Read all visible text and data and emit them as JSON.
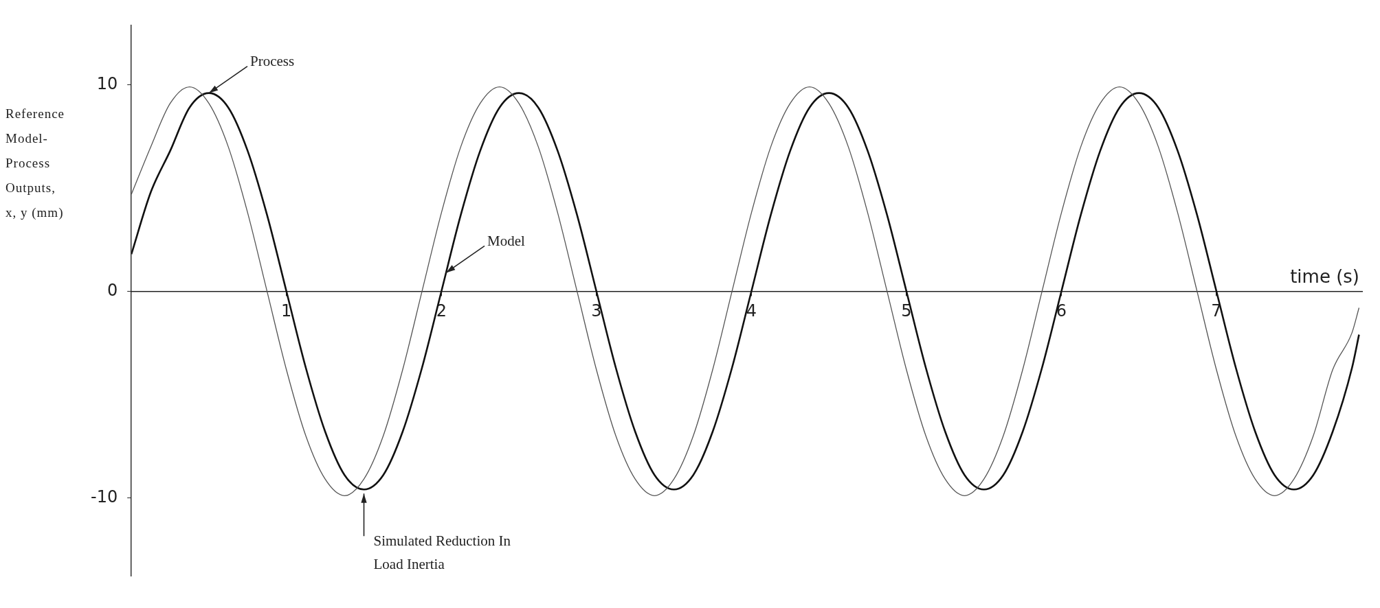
{
  "chart_data": {
    "type": "line",
    "ylabel": "Reference Model-Process Outputs, x, y (mm)",
    "xlabel": "time (s)",
    "x": [
      0,
      0.125,
      0.25,
      0.375,
      0.5,
      0.625,
      0.75,
      0.875,
      1,
      1.125,
      1.25,
      1.375,
      1.5,
      1.625,
      1.75,
      1.875,
      2,
      2.125,
      2.25,
      2.375,
      2.5,
      2.625,
      2.75,
      2.875,
      3,
      3.125,
      3.25,
      3.375,
      3.5,
      3.625,
      3.75,
      3.875,
      4,
      4.125,
      4.25,
      4.375,
      4.5,
      4.625,
      4.75,
      4.875,
      5,
      5.125,
      5.25,
      5.375,
      5.5,
      5.625,
      5.75,
      5.875,
      6,
      6.125,
      6.25,
      6.375,
      6.5,
      6.625,
      6.75,
      6.875,
      7,
      7.125,
      7.25,
      7.375,
      7.5,
      7.625,
      7.75,
      7.875,
      7.92
    ],
    "series": [
      {
        "color": "#555555",
        "values": [
          4.7,
          7.0,
          9.1,
          9.9,
          9.1,
          7.0,
          3.8,
          0,
          -3.8,
          -7.0,
          -9.1,
          -9.9,
          -9.1,
          -7.0,
          -3.8,
          0,
          3.8,
          7.0,
          9.1,
          9.9,
          9.1,
          7.0,
          3.8,
          0,
          -3.8,
          -7.0,
          -9.1,
          -9.9,
          -9.1,
          -7.0,
          -3.8,
          0,
          3.8,
          7.0,
          9.1,
          9.9,
          9.1,
          7.0,
          3.8,
          0,
          -3.8,
          -7.0,
          -9.1,
          -9.9,
          -9.1,
          -7.0,
          -3.8,
          0,
          3.8,
          7.0,
          9.1,
          9.9,
          9.1,
          7.0,
          3.8,
          0,
          -3.8,
          -7.0,
          -9.1,
          -9.9,
          -9.1,
          -7.0,
          -3.8,
          -2.0,
          -0.8
        ]
      },
      {
        "color": "#111111",
        "values": [
          1.8,
          4.8,
          6.8,
          8.9,
          9.6,
          8.9,
          6.8,
          3.7,
          0,
          -3.7,
          -6.8,
          -8.9,
          -9.6,
          -8.9,
          -6.8,
          -3.7,
          0,
          3.7,
          6.8,
          8.9,
          9.6,
          8.9,
          6.8,
          3.7,
          0,
          -3.7,
          -6.8,
          -8.9,
          -9.6,
          -8.9,
          -6.8,
          -3.7,
          0,
          3.7,
          6.8,
          8.9,
          9.6,
          8.9,
          6.8,
          3.7,
          0,
          -3.7,
          -6.8,
          -8.9,
          -9.6,
          -8.9,
          -6.8,
          -3.7,
          0,
          3.7,
          6.8,
          8.9,
          9.6,
          8.9,
          6.8,
          3.7,
          0,
          -3.7,
          -6.8,
          -8.9,
          -9.6,
          -8.9,
          -6.8,
          -3.7,
          -2.1
        ]
      }
    ],
    "xlim": [
      0,
      7.94
    ],
    "xticks": [
      1,
      2,
      3,
      4,
      5,
      6,
      7
    ],
    "ylim": [
      -13.8,
      12.9
    ],
    "yticks": [
      -10,
      0,
      10
    ],
    "grid": false,
    "legend": false,
    "marker": "none",
    "line_style": "solid",
    "annotations": [
      {
        "text": "Process",
        "x": 0.5,
        "y": 9.6
      },
      {
        "text": "Model",
        "x": 2.03,
        "y": 0.9
      },
      {
        "text": "Simulated Reduction In Load Inertia",
        "x": 1.5,
        "y": -9.6
      }
    ]
  }
}
